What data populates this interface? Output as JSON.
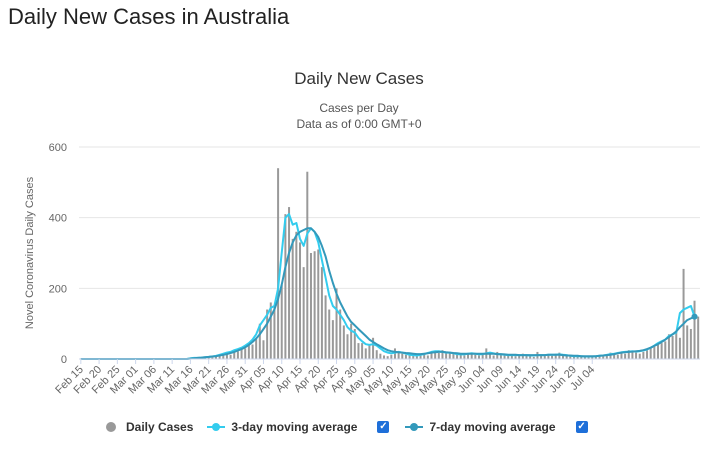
{
  "page": {
    "title": "Daily New Cases in Australia"
  },
  "chart_data": {
    "type": "bar",
    "title": "Daily New Cases",
    "subtitle_lines": [
      "Cases per Day",
      "Data as of 0:00 GMT+0"
    ],
    "ylabel": "Novel Coronavirus Daily Cases",
    "xlabel": "",
    "ylim": [
      0,
      600
    ],
    "yticks": [
      0,
      200,
      400,
      600
    ],
    "grid": true,
    "legend_position": "bottom",
    "x_labels": [
      "Feb 15",
      "Feb 20",
      "Feb 25",
      "Mar 01",
      "Mar 06",
      "Mar 11",
      "Mar 16",
      "Mar 21",
      "Mar 26",
      "Mar 31",
      "Apr 05",
      "Apr 10",
      "Apr 15",
      "Apr 20",
      "Apr 25",
      "Apr 30",
      "May 05",
      "May 10",
      "May 15",
      "May 20",
      "May 25",
      "May 30",
      "Jun 04",
      "Jun 09",
      "Jun 14",
      "Jun 19",
      "Jun 24",
      "Jun 29",
      "Jul 04"
    ],
    "series": [
      {
        "name": "Daily Cases",
        "kind": "bar",
        "color": "#999999",
        "values": [
          0,
          0,
          0,
          0,
          0,
          0,
          0,
          0,
          1,
          0,
          0,
          0,
          0,
          0,
          0,
          0,
          0,
          0,
          0,
          0,
          0,
          0,
          0,
          0,
          0,
          0,
          0,
          0,
          0,
          0,
          2,
          3,
          1,
          5,
          4,
          6,
          4,
          8,
          10,
          13,
          15,
          12,
          18,
          22,
          27,
          30,
          39,
          41,
          57,
          100,
          53,
          140,
          160,
          150,
          540,
          210,
          410,
          430,
          340,
          360,
          330,
          260,
          530,
          300,
          305,
          310,
          260,
          180,
          140,
          110,
          200,
          140,
          95,
          70,
          100,
          85,
          45,
          45,
          30,
          40,
          60,
          25,
          15,
          10,
          8,
          12,
          30,
          20,
          15,
          12,
          10,
          10,
          8,
          12,
          15,
          10,
          18,
          22,
          17,
          25,
          20,
          18,
          15,
          14,
          12,
          10,
          16,
          18,
          12,
          10,
          14,
          30,
          15,
          10,
          20,
          15,
          12,
          14,
          10,
          8,
          12,
          15,
          10,
          9,
          6,
          20,
          11,
          10,
          12,
          9,
          15,
          18,
          12,
          10,
          8,
          7,
          10,
          9,
          8,
          6,
          5,
          10,
          8,
          7,
          12,
          18,
          15,
          12,
          20,
          15,
          25,
          22,
          18,
          15,
          20,
          25,
          30,
          35,
          40,
          45,
          50,
          70,
          65,
          80,
          60,
          255,
          95,
          85,
          165,
          120
        ]
      },
      {
        "name": "3-day moving average",
        "kind": "line",
        "color": "#33ccee",
        "values": [
          0,
          0,
          0,
          0,
          0,
          0,
          0,
          0,
          0,
          0,
          0,
          0,
          0,
          0,
          0,
          0,
          0,
          0,
          0,
          0,
          0,
          0,
          0,
          0,
          0,
          0,
          0,
          0,
          0,
          0,
          2,
          3,
          3,
          4,
          5,
          6,
          7,
          9,
          12,
          15,
          18,
          20,
          25,
          28,
          32,
          38,
          45,
          55,
          70,
          95,
          110,
          125,
          145,
          150,
          200,
          300,
          400,
          410,
          380,
          385,
          340,
          320,
          355,
          370,
          360,
          330,
          280,
          230,
          180,
          150,
          140,
          125,
          110,
          90,
          80,
          75,
          60,
          50,
          42,
          40,
          42,
          38,
          30,
          22,
          18,
          16,
          18,
          20,
          18,
          15,
          12,
          11,
          10,
          12,
          14,
          17,
          20,
          22,
          22,
          20,
          18,
          18,
          16,
          14,
          13,
          13,
          15,
          16,
          15,
          13,
          14,
          16,
          18,
          16,
          14,
          13,
          12,
          11,
          11,
          11,
          11,
          11,
          11,
          10,
          10,
          11,
          11,
          11,
          12,
          12,
          12,
          13,
          12,
          11,
          9,
          8,
          8,
          8,
          7,
          7,
          7,
          8,
          9,
          10,
          12,
          14,
          15,
          17,
          19,
          20,
          21,
          22,
          21,
          22,
          24,
          27,
          32,
          38,
          45,
          50,
          55,
          65,
          70,
          75,
          130,
          140,
          145,
          150,
          120
        ]
      },
      {
        "name": "7-day moving average",
        "kind": "line",
        "color": "#3399bb",
        "values": [
          0,
          0,
          0,
          0,
          0,
          0,
          0,
          0,
          0,
          0,
          0,
          0,
          0,
          0,
          0,
          0,
          0,
          0,
          0,
          0,
          0,
          0,
          0,
          0,
          0,
          0,
          0,
          0,
          0,
          0,
          1,
          2,
          3,
          4,
          5,
          6,
          7,
          8,
          10,
          12,
          14,
          17,
          20,
          24,
          28,
          33,
          40,
          48,
          58,
          70,
          85,
          100,
          120,
          140,
          170,
          210,
          260,
          300,
          330,
          350,
          360,
          365,
          370,
          370,
          360,
          345,
          320,
          290,
          250,
          215,
          185,
          160,
          140,
          120,
          105,
          95,
          85,
          75,
          65,
          55,
          48,
          42,
          36,
          30,
          25,
          22,
          20,
          19,
          18,
          17,
          16,
          15,
          14,
          14,
          15,
          16,
          18,
          19,
          20,
          20,
          19,
          18,
          17,
          16,
          15,
          15,
          15,
          15,
          15,
          15,
          15,
          15,
          15,
          15,
          14,
          14,
          13,
          12,
          12,
          12,
          11,
          11,
          11,
          11,
          11,
          11,
          11,
          11,
          12,
          12,
          12,
          12,
          11,
          10,
          10,
          9,
          9,
          8,
          8,
          8,
          8,
          8,
          9,
          10,
          11,
          12,
          14,
          16,
          18,
          19,
          20,
          21,
          22,
          23,
          25,
          28,
          32,
          37,
          42,
          48,
          55,
          62,
          70,
          78,
          90,
          100,
          110,
          115,
          120
        ]
      }
    ]
  },
  "legend": {
    "items": [
      {
        "label": "Daily Cases",
        "toggle": false
      },
      {
        "label": "3-day moving average",
        "toggle": true
      },
      {
        "label": "7-day moving average",
        "toggle": true
      }
    ],
    "check_glyph": "✓"
  }
}
